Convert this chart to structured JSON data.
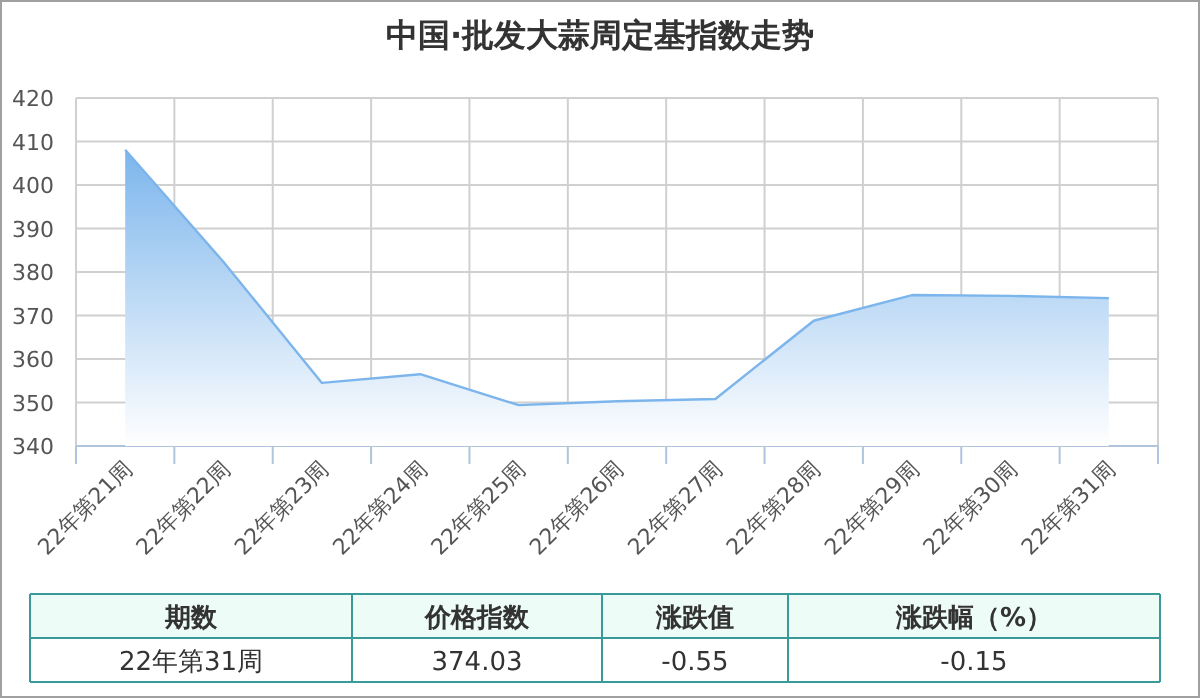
{
  "chart_data": {
    "type": "area",
    "title": "中国·批发大蒜周定基指数走势",
    "categories": [
      "22年第21周",
      "22年第22周",
      "22年第23周",
      "22年第24周",
      "22年第25周",
      "22年第26周",
      "22年第27周",
      "22年第28周",
      "22年第29周",
      "22年第30周",
      "22年第31周"
    ],
    "values": [
      408.1,
      382.3,
      354.5,
      356.5,
      349.4,
      350.3,
      350.8,
      368.8,
      374.7,
      374.5,
      374.0
    ],
    "color": "#7cb5ec",
    "ylim": [
      340,
      420
    ],
    "yticks": [
      340,
      350,
      360,
      370,
      380,
      390,
      400,
      410,
      420
    ],
    "grid": true,
    "annotations": [
      "期数",
      "价格指数",
      "涨跌值",
      "涨跌幅（%）",
      "22年第31周",
      "374.03",
      "-0.55",
      "-0.15"
    ]
  }
}
